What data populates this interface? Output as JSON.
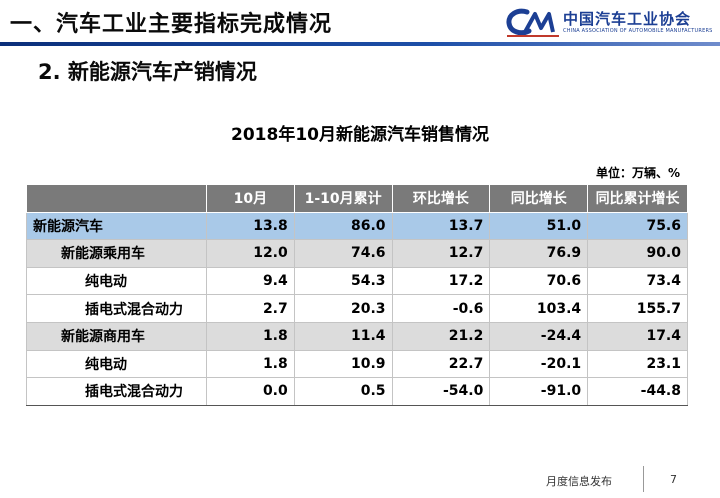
{
  "header": {
    "title": "一、汽车工业主要指标完成情况",
    "logo_cn": "中国汽车工业协会",
    "logo_en": "CHINA ASSOCIATION OF AUTOMOBILE MANUFACTURERS"
  },
  "section": {
    "subtitle": "2. 新能源汽车产销情况"
  },
  "table": {
    "title": "2018年10月新能源汽车销售情况",
    "unit": "单位：万辆、%",
    "columns": [
      "",
      "10月",
      "1-10月累计",
      "环比增长",
      "同比增长",
      "同比累计增长"
    ],
    "rows": [
      {
        "level": 0,
        "label": "新能源汽车",
        "values": [
          "13.8",
          "86.0",
          "13.7",
          "51.0",
          "75.6"
        ]
      },
      {
        "level": 1,
        "label": "新能源乘用车",
        "values": [
          "12.0",
          "74.6",
          "12.7",
          "76.9",
          "90.0"
        ]
      },
      {
        "level": 2,
        "label": "纯电动",
        "values": [
          "9.4",
          "54.3",
          "17.2",
          "70.6",
          "73.4"
        ]
      },
      {
        "level": 2,
        "label": "插电式混合动力",
        "values": [
          "2.7",
          "20.3",
          "-0.6",
          "103.4",
          "155.7"
        ]
      },
      {
        "level": 1,
        "label": "新能源商用车",
        "values": [
          "1.8",
          "11.4",
          "21.2",
          "-24.4",
          "17.4"
        ]
      },
      {
        "level": 2,
        "label": "纯电动",
        "values": [
          "1.8",
          "10.9",
          "22.7",
          "-20.1",
          "23.1"
        ]
      },
      {
        "level": 2,
        "label": "插电式混合动力",
        "values": [
          "0.0",
          "0.5",
          "-54.0",
          "-91.0",
          "-44.8"
        ]
      }
    ]
  },
  "footer": {
    "text": "月度信息发布",
    "page": "7"
  },
  "colors": {
    "accent": "#1c3f94",
    "header_bg": "#7a7a7a",
    "total_row": "#a9c9e8",
    "subtotal_row": "#dcdcdc"
  }
}
